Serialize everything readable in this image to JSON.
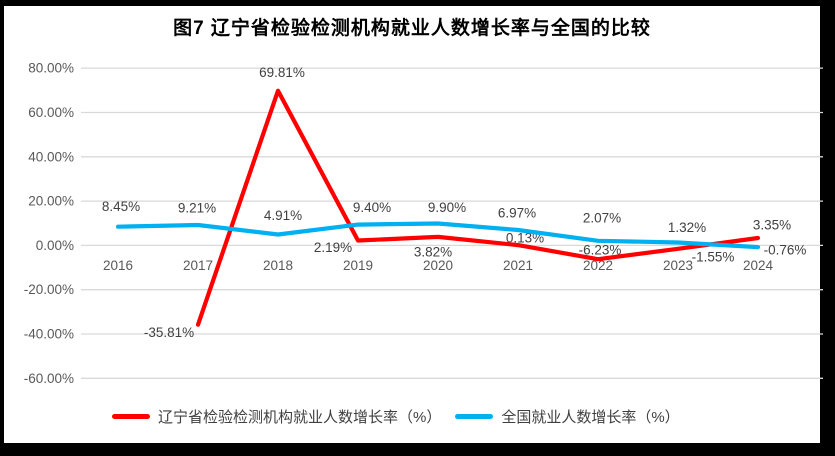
{
  "frame_color": "#000000",
  "chart_data": {
    "type": "line",
    "title": "图7 辽宁省检验检测机构就业人数增长率与全国的比较",
    "categories": [
      "2016",
      "2017",
      "2018",
      "2019",
      "2020",
      "2021",
      "2022",
      "2023",
      "2024"
    ],
    "series": [
      {
        "name": "辽宁省检验检测机构就业人数增长率（%）",
        "color": "#FF0000",
        "values": [
          null,
          -35.81,
          69.81,
          2.19,
          3.82,
          0.13,
          -6.23,
          -1.55,
          3.35
        ],
        "labels": [
          null,
          "-35.81%",
          "69.81%",
          "2.19%",
          "3.82%",
          "0.13%",
          "-6.23%",
          "-1.55%",
          "3.35%"
        ]
      },
      {
        "name": "全国就业人数增长率（%）",
        "color": "#00B0F0",
        "values": [
          8.45,
          9.21,
          4.91,
          9.4,
          9.9,
          6.97,
          2.07,
          1.32,
          -0.76
        ],
        "labels": [
          "8.45%",
          "9.21%",
          "4.91%",
          "9.40%",
          "9.90%",
          "6.97%",
          "2.07%",
          "1.32%",
          "-0.76%"
        ]
      }
    ],
    "y_axis": {
      "min": -60,
      "max": 80,
      "step": 20
    },
    "y_tick_labels": [
      "80.00%",
      "60.00%",
      "40.00%",
      "20.00%",
      "0.00%",
      "-20.00%",
      "-40.00%",
      "-60.00%"
    ],
    "grid": true,
    "legend_position": "bottom",
    "colors": {
      "gridline": "#D9D9D9",
      "axis_text": "#595959",
      "data_label_text": "#404040",
      "background": "#FFFFFF"
    }
  }
}
